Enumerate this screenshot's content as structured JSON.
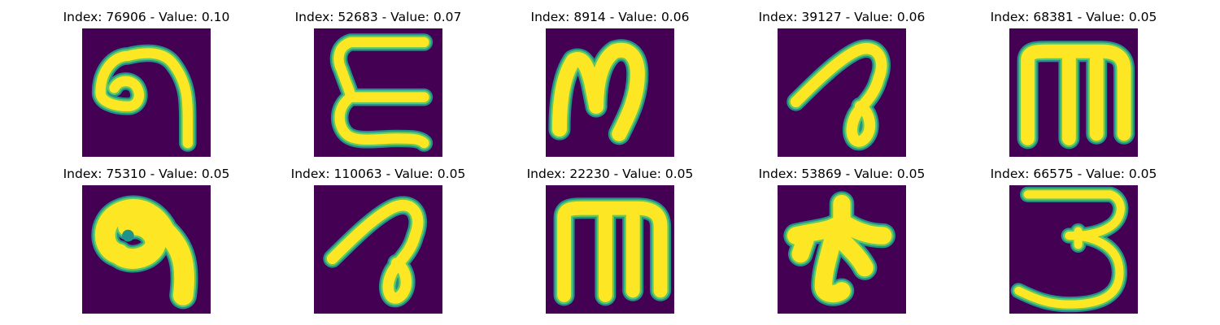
{
  "colors": {
    "background": "#440154",
    "stroke_core": "#fde725",
    "stroke_mid": "#5ec962",
    "stroke_edge": "#21918c"
  },
  "panels": [
    {
      "title": "Index: 76906 - Value: 0.10",
      "glyph": "curled-hook"
    },
    {
      "title": "Index: 52683 - Value: 0.07",
      "glyph": "epsilon-e"
    },
    {
      "title": "Index: 8914 - Value: 0.06",
      "glyph": "cursive-m"
    },
    {
      "title": "Index: 39127 - Value: 0.06",
      "glyph": "looped-stroke"
    },
    {
      "title": "Index: 68381 - Value: 0.05",
      "glyph": "lowercase-m"
    },
    {
      "title": "Index: 75310 - Value: 0.05",
      "glyph": "blob-hook"
    },
    {
      "title": "Index: 110063 - Value: 0.05",
      "glyph": "looped-stroke"
    },
    {
      "title": "Index: 22230 - Value: 0.05",
      "glyph": "lowercase-m"
    },
    {
      "title": "Index: 53869 - Value: 0.05",
      "glyph": "star-blob"
    },
    {
      "title": "Index: 66575 - Value: 0.05",
      "glyph": "digit-three"
    }
  ]
}
